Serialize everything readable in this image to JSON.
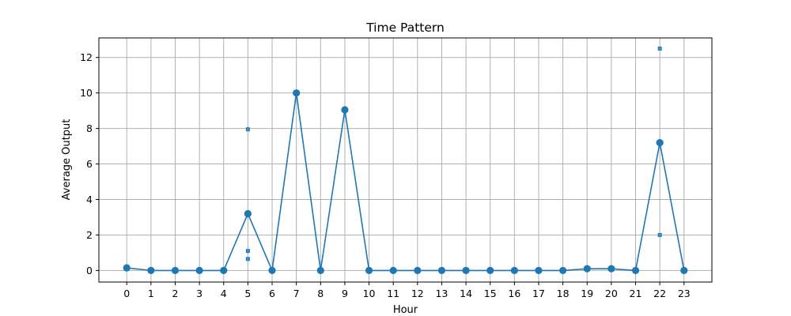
{
  "chart_data": {
    "type": "line",
    "title": "Time Pattern",
    "xlabel": "Hour",
    "ylabel": "Average Output",
    "x": [
      0,
      1,
      2,
      3,
      4,
      5,
      6,
      7,
      8,
      9,
      10,
      11,
      12,
      13,
      14,
      15,
      16,
      17,
      18,
      19,
      20,
      21,
      22,
      23
    ],
    "series": [
      {
        "values": [
          0.15,
          0,
          0,
          0,
          0,
          3.2,
          0,
          10.0,
          0,
          9.05,
          0,
          0,
          0,
          0,
          0,
          0,
          0,
          0,
          0,
          0.1,
          0.1,
          0,
          7.2,
          0
        ],
        "color": "#1f77b4",
        "marker": "circle"
      }
    ],
    "range_marks": [
      {
        "x": 5,
        "values": [
          0.65,
          1.1,
          7.95
        ]
      },
      {
        "x": 22,
        "values": [
          2.0,
          12.5
        ]
      }
    ],
    "xticks": [
      "0",
      "1",
      "2",
      "3",
      "4",
      "5",
      "6",
      "7",
      "8",
      "9",
      "10",
      "11",
      "12",
      "13",
      "14",
      "15",
      "16",
      "17",
      "18",
      "19",
      "20",
      "21",
      "22",
      "23"
    ],
    "yticks": [
      0,
      2,
      4,
      6,
      8,
      10,
      12
    ],
    "xlim": [
      -1.15,
      24.15
    ],
    "ylim": [
      -0.65,
      13.1
    ],
    "grid": true,
    "legend": "none"
  }
}
